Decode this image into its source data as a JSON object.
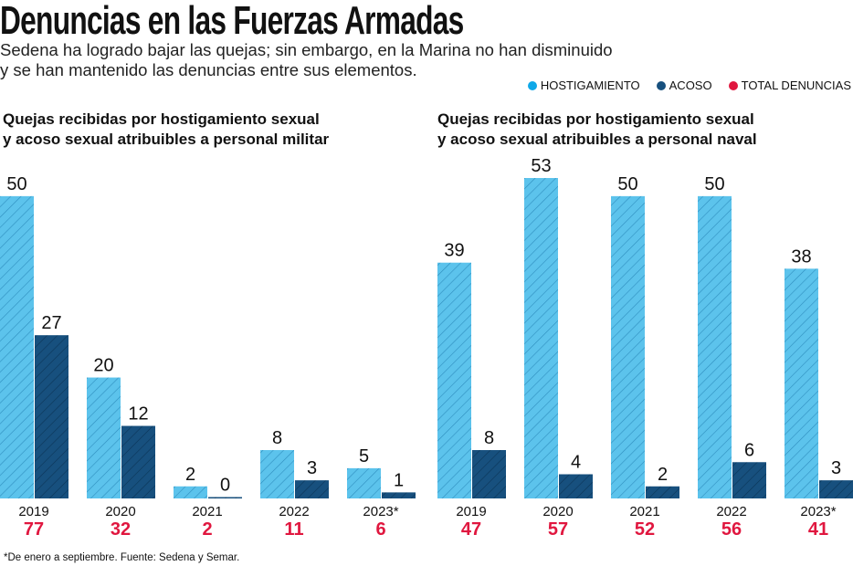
{
  "header": {
    "title": "Denuncias en las Fuerzas Armadas",
    "subtitle_line1": "Sedena ha logrado bajar las quejas; sin embargo, en la Marina no han disminuido",
    "subtitle_line2": "y se han mantenido las denuncias entre sus elementos."
  },
  "colors": {
    "hostigamiento": "#55bde9",
    "acoso": "#17507e",
    "total": "#e0173f"
  },
  "legend": [
    "HOSTIGAMIENTO",
    "ACOSO",
    "TOTAL DENUNCIAS"
  ],
  "chart_data": [
    {
      "type": "bar",
      "title_line1": "Quejas recibidas por hostigamiento sexual",
      "title_line2": "y acoso sexual atribuibles a personal militar",
      "categories": [
        "2019",
        "2020",
        "2021",
        "2022",
        "2023*"
      ],
      "series": [
        {
          "name": "HOSTIGAMIENTO",
          "values": [
            50,
            20,
            2,
            8,
            5
          ]
        },
        {
          "name": "ACOSO",
          "values": [
            27,
            12,
            0,
            3,
            1
          ]
        }
      ],
      "totals": [
        "77",
        "32",
        "2",
        "11",
        "6"
      ],
      "ylim": [
        0,
        53
      ]
    },
    {
      "type": "bar",
      "title_line1": "Quejas recibidas por hostigamiento sexual",
      "title_line2": "y acoso sexual atribuibles a personal naval",
      "categories": [
        "2019",
        "2020",
        "2021",
        "2022",
        "2023*"
      ],
      "series": [
        {
          "name": "HOSTIGAMIENTO",
          "values": [
            39,
            53,
            50,
            50,
            38
          ]
        },
        {
          "name": "ACOSO",
          "values": [
            8,
            4,
            2,
            6,
            3
          ]
        }
      ],
      "totals": [
        "47",
        "57",
        "52",
        "56",
        "41"
      ],
      "ylim": [
        0,
        53
      ]
    }
  ],
  "footnote": "*De enero a septiembre. Fuente: Sedena y Semar."
}
